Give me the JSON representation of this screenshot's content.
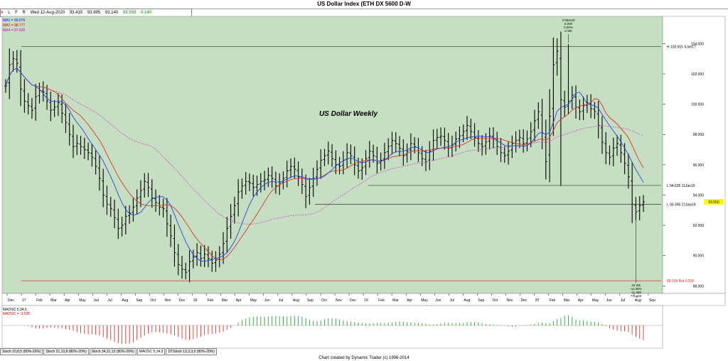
{
  "title": "US Dollar Index (ETH DX 5600 D-W",
  "header": {
    "icons": [
      "close-icon",
      "L",
      "F",
      "R"
    ],
    "date": "Wed 12-Aug-2020",
    "open": "93.415",
    "high": "93.895",
    "low": "93.140",
    "close": "93.550",
    "change": "0.140",
    "add_symbol": "+"
  },
  "ma_legend": [
    {
      "label": "MA1 = 99.076",
      "color": "#0000ff"
    },
    {
      "label": "MA2 = 98.777",
      "color": "#cc0000"
    },
    {
      "label": "MA4 = 97.835",
      "color": "#cc00cc"
    }
  ],
  "osc_legend": [
    {
      "label": "MAOSC 5,34,5",
      "color": "#000000"
    },
    {
      "label": "MAOSC = -3.535",
      "color": "#cc0000"
    }
  ],
  "tabs": [
    "Stoch 10,8,5 (80%-20%)",
    "Stoch 21,13,8 (80%-20%)",
    "Stoch 34,21,13 (80%-20%)",
    "MAOSC 5,34,5",
    "DTStoch 13,3,3,5 (80%-20%)"
  ],
  "credit": "Chart created by Dynamic Trader  (c) 1996-2014",
  "colors": {
    "bg": "#c6dfc2",
    "bars": "#000000",
    "ma1": "#2a43e0",
    "ma2": "#d9362b",
    "ma4": "#cc44cc",
    "hline": "#333333",
    "retline": "#cc3333",
    "osc_pos": "#2e9e3e",
    "osc_neg": "#d9362b",
    "highlight": "#ffff00"
  },
  "chart_data": {
    "type": "ohlc",
    "annotation": "US Dollar Weekly",
    "ylim": [
      87.5,
      105.8
    ],
    "y_ticks": [
      "104.000",
      "102.000",
      "100.000",
      "98.000",
      "96.000",
      "94.000",
      "92.000",
      "90.000",
      "88.000"
    ],
    "y_tick_values": [
      104,
      102,
      100,
      98,
      96,
      94,
      92,
      90,
      88
    ],
    "x_ticks": [
      "Dec",
      "17",
      "Feb",
      "Mar",
      "Apr",
      "May",
      "Jun",
      "Jul",
      "Aug",
      "Sep",
      "Oct",
      "Nov",
      "Dec",
      "18",
      "Feb",
      "Mar",
      "Apr",
      "May",
      "Jun",
      "Jul",
      "Aug",
      "Sep",
      "Oct",
      "Nov",
      "Dec",
      "19",
      "Feb",
      "Mar",
      "Apr",
      "May",
      "Jun",
      "Jul",
      "Aug",
      "Sep",
      "Oct",
      "Nov",
      "Dec",
      "20",
      "Feb",
      "Mar",
      "Apr",
      "May",
      "Jun",
      "Jul",
      "Aug",
      "Sep"
    ],
    "closes": [
      101.2,
      102.6,
      103.0,
      102.7,
      101.0,
      100.2,
      99.9,
      99.6,
      100.5,
      100.9,
      100.8,
      100.2,
      99.6,
      99.8,
      100.1,
      99.4,
      98.8,
      98.0,
      97.2,
      97.4,
      97.2,
      97.0,
      96.8,
      96.5,
      95.9,
      95.1,
      94.0,
      93.4,
      93.1,
      92.5,
      91.8,
      92.0,
      92.6,
      92.8,
      93.2,
      93.8,
      94.3,
      94.9,
      94.5,
      93.8,
      93.5,
      93.2,
      93.1,
      92.1,
      91.3,
      90.2,
      89.4,
      89.1,
      88.9,
      89.6,
      89.9,
      90.2,
      89.8,
      90.1,
      89.8,
      89.5,
      89.7,
      90.1,
      90.8,
      91.8,
      92.6,
      93.3,
      94.2,
      94.6,
      94.9,
      94.8,
      94.5,
      94.7,
      94.9,
      95.0,
      95.3,
      95.1,
      94.6,
      94.8,
      95.1,
      95.6,
      95.9,
      95.7,
      95.2,
      94.7,
      93.9,
      94.5,
      95.1,
      95.7,
      96.3,
      96.6,
      96.9,
      96.4,
      96.0,
      95.9,
      96.3,
      96.8,
      96.6,
      96.0,
      95.6,
      95.8,
      96.4,
      96.9,
      96.6,
      96.1,
      96.3,
      96.8,
      97.2,
      97.6,
      97.4,
      97.1,
      96.6,
      96.9,
      97.4,
      97.2,
      96.8,
      96.4,
      96.2,
      96.9,
      97.6,
      97.8,
      97.9,
      97.6,
      97.1,
      97.3,
      97.7,
      97.9,
      98.2,
      98.6,
      98.2,
      97.8,
      97.4,
      97.2,
      97.5,
      97.9,
      97.7,
      97.2,
      96.8,
      96.6,
      96.9,
      97.4,
      97.6,
      97.8,
      97.4,
      97.7,
      98.2,
      98.9,
      99.5,
      98.1,
      96.2,
      99.2,
      102.6,
      103.5,
      100.3,
      99.8,
      100.2,
      100.6,
      99.8,
      99.5,
      99.9,
      100.1,
      99.7,
      99.5,
      98.6,
      97.5,
      96.8,
      96.5,
      97.1,
      97.4,
      96.8,
      96.1,
      95.2,
      93.4,
      92.9,
      93.3,
      93.55
    ],
    "ma1_final": 99.076,
    "ma2_final": 98.777,
    "ma4_final": 97.835,
    "hlines": [
      {
        "label": "H 103.815 6Jan17",
        "value": 103.815
      },
      {
        "label": "L 94.635 11Jan19",
        "value": 94.635
      },
      {
        "label": "L 93.395 21Sep18",
        "value": 93.395
      },
      {
        "label": "88.339 Ret 0.500",
        "value": 88.339
      }
    ],
    "current_price_label": "93.550",
    "peak_annotation": [
      "27Mar20",
      "0.000",
      "0.00%",
      "0 Wk"
    ],
    "low_annotation": [
      "19 Wk",
      "-11.05%",
      "-11.465",
      "7Aug20"
    ],
    "oscillator_final": -3.535
  }
}
